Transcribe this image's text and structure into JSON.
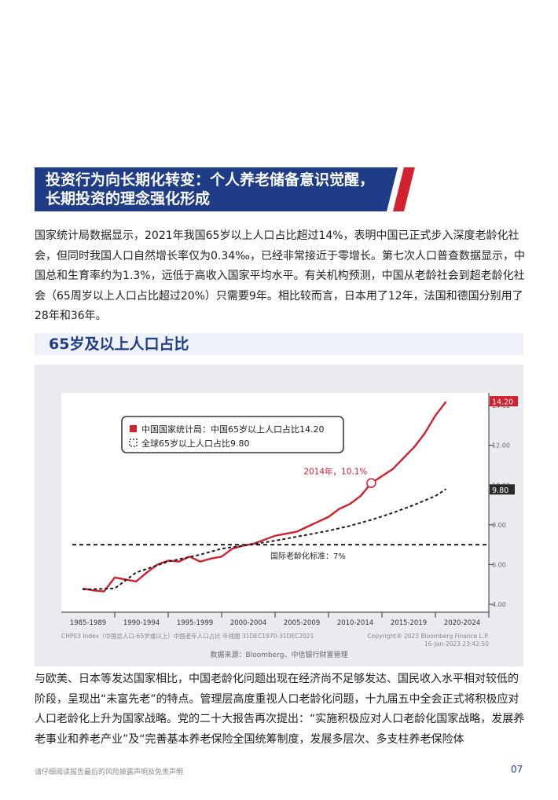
{
  "heading": {
    "line1": "投资行为向长期化转变：个人养老储备意识觉醒，",
    "line2": "长期投资的理念强化形成"
  },
  "paragraph1": "国家统计局数据显示，2021年我国65岁以上人口占比超过14%，表明中国已正式步入深度老龄化社会，但同时我国人口自然增长率仅为0.34‰，已经非常接近于零增长。第七次人口普查数据显示，中国总和生育率约为1.3%，远低于高收入国家平均水平。有关机构预测，中国从老龄社会到超老龄化社会（65周岁以上人口占比超过20%）只需要9年。相比较而言，日本用了12年，法国和德国分别用了28年和36年。",
  "chart_title": "65岁及以上人口占比",
  "chart_data": {
    "type": "line",
    "title": "65岁及以上人口占比",
    "categories": [
      "1985-1989",
      "1990-1994",
      "1995-1999",
      "2000-2004",
      "2005-2009",
      "2010-2014",
      "2015-2019",
      "2020-2024"
    ],
    "ylim": [
      4,
      14.4
    ],
    "yticks": [
      "4.00",
      "6.00",
      "8.00",
      "10.00",
      "12.00",
      "14.00"
    ],
    "series": [
      {
        "name": "中国国家统计局：中国65岁以上人口占比14.20",
        "color": "#d2202f",
        "style": "solid",
        "x": [
          1987,
          1988,
          1989,
          1990,
          1991,
          1992,
          1993,
          1994,
          1995,
          1996,
          1997,
          1998,
          1999,
          2000,
          2001,
          2002,
          2003,
          2004,
          2005,
          2006,
          2007,
          2008,
          2009,
          2010,
          2011,
          2012,
          2013,
          2014,
          2015,
          2016,
          2017,
          2018,
          2019,
          2020,
          2021
        ],
        "values": [
          4.8,
          4.7,
          4.65,
          5.35,
          5.25,
          5.15,
          5.6,
          6.0,
          6.2,
          6.15,
          6.4,
          6.15,
          6.3,
          6.4,
          6.8,
          6.95,
          7.05,
          7.25,
          7.45,
          7.55,
          7.65,
          7.9,
          8.15,
          8.4,
          8.8,
          9.05,
          9.45,
          10.1,
          10.45,
          10.8,
          11.35,
          11.9,
          12.6,
          13.5,
          14.2
        ]
      },
      {
        "name": "全球65岁以上人口占比9.80",
        "color": "#1f1f1f",
        "style": "dashed",
        "x": [
          1987,
          1990,
          1992,
          1995,
          1998,
          2000,
          2002,
          2005,
          2008,
          2010,
          2012,
          2014,
          2016,
          2018,
          2020,
          2021
        ],
        "values": [
          4.75,
          4.8,
          5.6,
          6.15,
          6.5,
          6.8,
          6.95,
          7.2,
          7.5,
          7.7,
          7.95,
          8.25,
          8.6,
          9.0,
          9.45,
          9.8
        ]
      }
    ],
    "reference_line": {
      "value": 7.0,
      "label": "国际老龄化标准：7%"
    },
    "annotation": {
      "x": 2014,
      "y": 10.1,
      "label": "2014年，10.1%"
    },
    "end_labels": {
      "china": "14.20",
      "world": "9.80"
    },
    "legend_position": "top-left",
    "grid": false,
    "footer_left": "CHP03 Index（中国总人口-65岁或以上）中国老年人口占比 年线图 31DEC1970-31DEC2021",
    "footer_right": "Copyright® 2023 Bloomberg Finance L.P.",
    "timestamp": "16-Jan-2023 23:42:50",
    "source": "数据来源：Bloomberg、中信银行财富管理"
  },
  "paragraph2": "与欧美、日本等发达国家相比，中国老龄化问题出现在经济尚不足够发达、国民收入水平相对较低的阶段，呈现出“未富先老”的特点。管理层高度重视人口老龄化问题，十九届五中全会正式将积极应对人口老龄化上升为国家战略。党的二十大报告再次提出：“实施积极应对人口老龄化国家战略，发展养老事业和养老产业”及“完善基本养老保险全国统筹制度，发展多层次、多支柱养老保险体",
  "footer": {
    "disclaimer": "请仔细阅读报告最后的风险披露声明及免责声明",
    "page": "07"
  }
}
